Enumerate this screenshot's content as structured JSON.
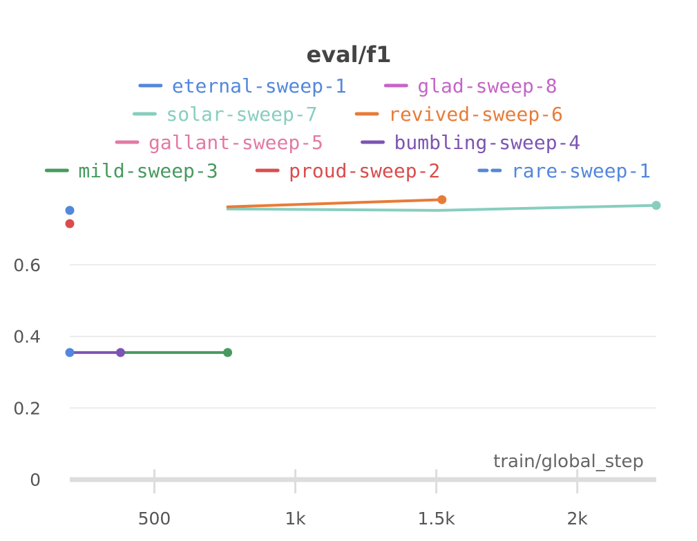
{
  "chart_data": {
    "type": "line",
    "title": "eval/f1",
    "xlabel": "train/global_step",
    "ylabel": "",
    "xlim": [
      200,
      2280
    ],
    "ylim": [
      0,
      0.8
    ],
    "grid": true,
    "legend_position": "top",
    "x_ticks": [
      {
        "value": 500,
        "label": "500"
      },
      {
        "value": 1000,
        "label": "1k"
      },
      {
        "value": 1500,
        "label": "1.5k"
      },
      {
        "value": 2000,
        "label": "2k"
      }
    ],
    "y_ticks": [
      {
        "value": 0,
        "label": "0"
      },
      {
        "value": 0.2,
        "label": "0.2"
      },
      {
        "value": 0.4,
        "label": "0.4"
      },
      {
        "value": 0.6,
        "label": "0.6"
      }
    ],
    "series": [
      {
        "name": "eternal-sweep-1",
        "color": "#5387dd",
        "dashed": false,
        "points": [
          [
            190,
            0.752
          ],
          [
            190,
            0.355
          ]
        ]
      },
      {
        "name": "glad-sweep-8",
        "color": "#c565c7",
        "dashed": false,
        "points": []
      },
      {
        "name": "solar-sweep-7",
        "color": "#87cebf",
        "dashed": false,
        "points": [
          [
            760,
            0.756
          ],
          [
            1500,
            0.752
          ],
          [
            2280,
            0.766
          ]
        ]
      },
      {
        "name": "revived-sweep-6",
        "color": "#e87b38",
        "dashed": false,
        "points": [
          [
            760,
            0.762
          ],
          [
            1520,
            0.782
          ]
        ]
      },
      {
        "name": "gallant-sweep-5",
        "color": "#e27aa3",
        "dashed": false,
        "points": []
      },
      {
        "name": "bumbling-sweep-4",
        "color": "#7d54b2",
        "dashed": false,
        "points": [
          [
            190,
            0.355
          ],
          [
            380,
            0.355
          ]
        ]
      },
      {
        "name": "mild-sweep-3",
        "color": "#479a5f",
        "dashed": false,
        "points": [
          [
            380,
            0.355
          ],
          [
            760,
            0.355
          ]
        ]
      },
      {
        "name": "proud-sweep-2",
        "color": "#da4c4c",
        "dashed": false,
        "points": [
          [
            190,
            0.715
          ]
        ]
      },
      {
        "name": "rare-sweep-1",
        "color": "#5387dd",
        "dashed": true,
        "points": []
      }
    ]
  }
}
